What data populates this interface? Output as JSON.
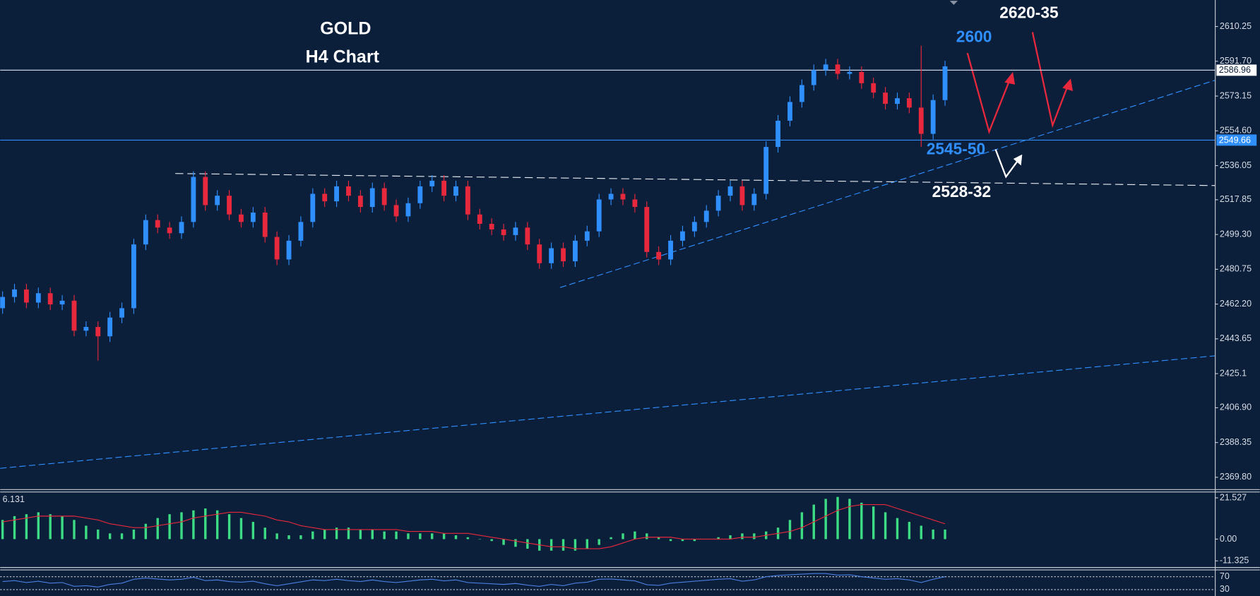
{
  "chart_data": {
    "type": "candlestick",
    "title": "GOLD",
    "subtitle": "H4 Chart",
    "annotations": [
      "2600",
      "2620-35",
      "2545-50",
      "2528-32"
    ],
    "ylim": [
      2363.47,
      2624.39
    ],
    "yticks": [
      {
        "value": 2369.8,
        "label": "2369.80"
      },
      2388.35,
      {
        "value": 2406.9,
        "label": "2406.90"
      },
      2425.1,
      2443.65,
      {
        "value": 2462.2,
        "label": "2462.20"
      },
      2480.75,
      {
        "value": 2499.3,
        "label": "2499.30"
      },
      2517.85,
      2536.05,
      {
        "value": 2554.6,
        "label": "2554.60"
      },
      2573.15,
      {
        "value": 2591.7,
        "label": "2591.70"
      },
      2610.25
    ],
    "levels": [
      2586.96,
      2549.66
    ],
    "up_color": "#2f8fff",
    "down_color": "#e8283c",
    "open": [
      2460,
      2466,
      2470,
      2463,
      2468,
      2462,
      2464,
      2448,
      2450,
      2445,
      2455,
      2460,
      2494,
      2507,
      2503,
      2500,
      2506,
      2530,
      2515,
      2520,
      2510,
      2506,
      2511,
      2498,
      2486,
      2496,
      2506,
      2521,
      2517,
      2525,
      2520,
      2514,
      2524,
      2515,
      2509,
      2516,
      2525,
      2528,
      2520,
      2525,
      2510,
      2505,
      2502,
      2499,
      2503,
      2494,
      2484,
      2492,
      2485,
      2496,
      2501,
      2518,
      2521,
      2518,
      2514,
      2490,
      2486,
      2496,
      2501,
      2506,
      2512,
      2520,
      2525,
      2515,
      2521,
      2546,
      2560,
      2570,
      2579,
      2587,
      2590,
      2585,
      2586,
      2580,
      2575,
      2569,
      2572,
      2567,
      2553,
      2571
    ],
    "high": [
      2469,
      2473,
      2473,
      2471,
      2471,
      2467,
      2467,
      2453,
      2453,
      2458,
      2463,
      2497,
      2510,
      2510,
      2506,
      2509,
      2533,
      2533,
      2523,
      2523,
      2513,
      2514,
      2514,
      2501,
      2499,
      2509,
      2524,
      2524,
      2528,
      2528,
      2523,
      2527,
      2527,
      2518,
      2519,
      2528,
      2531,
      2531,
      2528,
      2528,
      2513,
      2508,
      2505,
      2506,
      2506,
      2497,
      2495,
      2495,
      2499,
      2504,
      2521,
      2524,
      2524,
      2521,
      2517,
      2493,
      2499,
      2504,
      2509,
      2515,
      2523,
      2528,
      2528,
      2524,
      2549,
      2563,
      2573,
      2582,
      2590,
      2593,
      2593,
      2589,
      2589,
      2583,
      2578,
      2575,
      2575,
      2600,
      2574,
      2592
    ],
    "low": [
      2457,
      2463,
      2460,
      2460,
      2459,
      2459,
      2445,
      2445,
      2432,
      2442,
      2452,
      2457,
      2491,
      2500,
      2497,
      2497,
      2503,
      2512,
      2512,
      2507,
      2503,
      2503,
      2495,
      2483,
      2483,
      2493,
      2503,
      2514,
      2514,
      2517,
      2511,
      2511,
      2512,
      2506,
      2506,
      2513,
      2522,
      2517,
      2517,
      2507,
      2502,
      2499,
      2496,
      2496,
      2491,
      2481,
      2481,
      2482,
      2482,
      2493,
      2498,
      2515,
      2515,
      2511,
      2487,
      2483,
      2483,
      2493,
      2498,
      2503,
      2509,
      2517,
      2512,
      2512,
      2518,
      2543,
      2557,
      2567,
      2576,
      2584,
      2582,
      2582,
      2577,
      2572,
      2566,
      2566,
      2564,
      2546,
      2550,
      2568
    ],
    "close": [
      2466,
      2470,
      2463,
      2468,
      2462,
      2464,
      2448,
      2450,
      2445,
      2455,
      2460,
      2494,
      2507,
      2503,
      2500,
      2506,
      2530,
      2515,
      2520,
      2510,
      2506,
      2511,
      2498,
      2486,
      2496,
      2506,
      2521,
      2517,
      2525,
      2520,
      2514,
      2524,
      2515,
      2509,
      2516,
      2525,
      2528,
      2520,
      2525,
      2510,
      2505,
      2502,
      2499,
      2503,
      2494,
      2484,
      2492,
      2485,
      2496,
      2501,
      2518,
      2521,
      2518,
      2514,
      2490,
      2486,
      2496,
      2501,
      2506,
      2512,
      2520,
      2525,
      2515,
      2521,
      2546,
      2560,
      2570,
      2579,
      2587,
      2590,
      2585,
      2586,
      2580,
      2575,
      2569,
      2572,
      2567,
      2553,
      2571,
      2589
    ],
    "macd": {
      "label": "6.131",
      "ylim": [
        -14.57,
        24.37
      ],
      "yticks": [
        -11.325,
        {
          "value": 0,
          "label": "0.00"
        },
        21.527
      ],
      "hist_color": "#3ddc84",
      "signal_color": "#e8283c",
      "histogram": [
        10,
        12,
        13,
        14,
        13,
        12,
        10,
        7,
        5,
        3,
        3,
        5,
        8,
        11,
        13,
        14,
        15,
        16,
        15,
        13,
        11,
        9,
        6,
        3,
        2,
        2,
        4,
        5,
        6,
        6,
        5,
        5,
        4,
        4,
        3,
        3,
        3,
        3,
        2,
        1,
        0,
        -1,
        -3,
        -4,
        -5,
        -6,
        -6,
        -6,
        -6,
        -5,
        -3,
        1,
        3,
        4,
        3,
        1,
        -1,
        -1,
        -1,
        0,
        1,
        2,
        3,
        3,
        4,
        6,
        10,
        14,
        18,
        21,
        22,
        21,
        19,
        17,
        14,
        11,
        9,
        7,
        5,
        5
      ],
      "signal": [
        9,
        10,
        11,
        12,
        12,
        12,
        12,
        11,
        10,
        8,
        7,
        6,
        6,
        7,
        8,
        9,
        11,
        12,
        13,
        14,
        14,
        13,
        12,
        10,
        9,
        7,
        6,
        5,
        5,
        5,
        5,
        5,
        5,
        5,
        4,
        4,
        4,
        3,
        3,
        3,
        2,
        1,
        0,
        -1,
        -2,
        -3,
        -4,
        -4,
        -5,
        -5,
        -5,
        -4,
        -2,
        0,
        1,
        1,
        1,
        0,
        0,
        0,
        0,
        0,
        1,
        1,
        2,
        3,
        4,
        6,
        9,
        12,
        15,
        17,
        18,
        18,
        18,
        16,
        14,
        12,
        10,
        8
      ]
    },
    "rsi": {
      "ylim": [
        10,
        90
      ],
      "yticks": [
        30,
        70
      ],
      "color": "#4a7fe0",
      "values": [
        55,
        58,
        52,
        56,
        50,
        52,
        40,
        42,
        38,
        46,
        50,
        62,
        66,
        63,
        60,
        62,
        68,
        58,
        60,
        55,
        53,
        56,
        48,
        42,
        48,
        54,
        60,
        58,
        62,
        58,
        55,
        60,
        55,
        52,
        56,
        60,
        62,
        57,
        60,
        52,
        50,
        48,
        46,
        49,
        44,
        40,
        46,
        42,
        50,
        53,
        62,
        63,
        60,
        57,
        45,
        43,
        50,
        53,
        56,
        59,
        62,
        64,
        56,
        60,
        70,
        74,
        76,
        78,
        80,
        80,
        75,
        76,
        70,
        66,
        62,
        64,
        60,
        52,
        62,
        70
      ]
    }
  }
}
